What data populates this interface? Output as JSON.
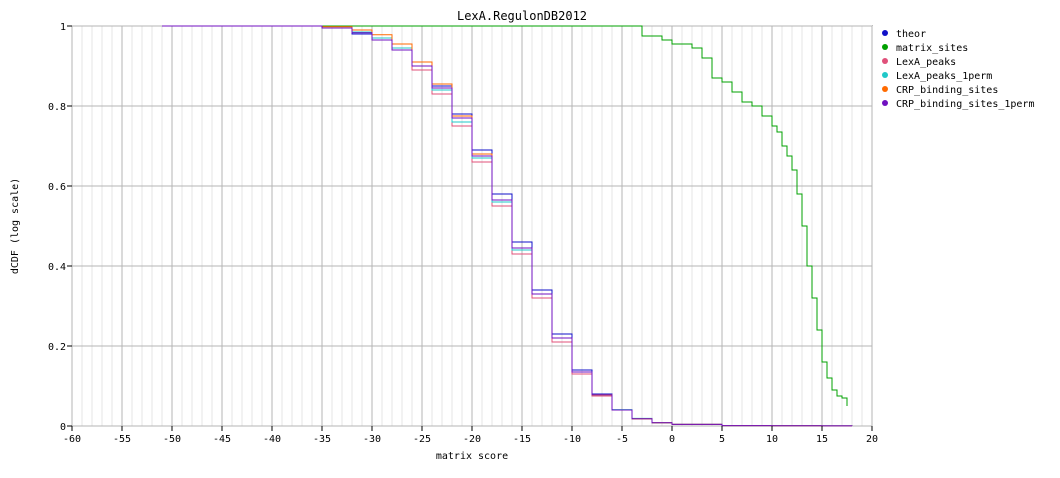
{
  "chart_data": {
    "type": "line",
    "title": "LexA.RegulonDB2012",
    "xlabel": "matrix score",
    "ylabel": "dCDF (log scale)",
    "xlim": [
      -60,
      20
    ],
    "ylim": [
      0,
      1
    ],
    "x_ticks": [
      "-60",
      "-55",
      "-50",
      "-45",
      "-40",
      "-35",
      "-30",
      "-25",
      "-20",
      "-15",
      "-10",
      "-5",
      "0",
      "5",
      "10",
      "15",
      "20"
    ],
    "y_ticks": [
      "0",
      "0.2",
      "0.4",
      "0.6",
      "0.8",
      "1"
    ],
    "grid": true,
    "legend_position": "right",
    "series": [
      {
        "name": "theor",
        "color": "#1010c8",
        "x": [
          -51,
          -40,
          -35,
          -32,
          -30,
          -28,
          -26,
          -24,
          -22,
          -20,
          -18,
          -16,
          -14,
          -12,
          -10,
          -8,
          -6,
          -4,
          -2,
          0,
          5,
          10,
          15,
          18
        ],
        "y": [
          1.0,
          1.0,
          0.995,
          0.98,
          0.965,
          0.94,
          0.9,
          0.85,
          0.78,
          0.69,
          0.58,
          0.46,
          0.34,
          0.23,
          0.14,
          0.08,
          0.04,
          0.018,
          0.008,
          0.004,
          0.001,
          0.0005,
          0.0002,
          0.0001
        ]
      },
      {
        "name": "matrix_sites",
        "color": "#00a000",
        "x": [
          -51,
          -3.5,
          -3,
          -1,
          0,
          2,
          3,
          4,
          5,
          6,
          7,
          8,
          9,
          10,
          10.5,
          11,
          11.5,
          12,
          12.5,
          13,
          13.5,
          14,
          14.5,
          15,
          15.5,
          16,
          16.5,
          17,
          17.5
        ],
        "y": [
          1.0,
          1.0,
          0.975,
          0.965,
          0.955,
          0.945,
          0.92,
          0.87,
          0.86,
          0.835,
          0.81,
          0.8,
          0.775,
          0.75,
          0.735,
          0.7,
          0.675,
          0.64,
          0.58,
          0.5,
          0.4,
          0.32,
          0.24,
          0.16,
          0.12,
          0.09,
          0.075,
          0.07,
          0.05
        ]
      },
      {
        "name": "LexA_peaks",
        "color": "#e0507a",
        "x": [
          -51,
          -40,
          -35,
          -32,
          -30,
          -28,
          -26,
          -24,
          -22,
          -20,
          -18,
          -16,
          -14,
          -12,
          -10,
          -8,
          -6,
          -4,
          -2,
          0,
          5,
          10,
          15,
          18
        ],
        "y": [
          1.0,
          1.0,
          0.995,
          0.985,
          0.97,
          0.945,
          0.89,
          0.83,
          0.75,
          0.66,
          0.55,
          0.43,
          0.32,
          0.21,
          0.13,
          0.075,
          0.04,
          0.018,
          0.008,
          0.004,
          0.001,
          0.0005,
          0.0002,
          0.0001
        ]
      },
      {
        "name": "LexA_peaks_1perm",
        "color": "#20c8c8",
        "x": [
          -51,
          -40,
          -35,
          -32,
          -30,
          -28,
          -26,
          -24,
          -22,
          -20,
          -18,
          -16,
          -14,
          -12,
          -10,
          -8,
          -6,
          -4,
          -2,
          0,
          5,
          10,
          15,
          18
        ],
        "y": [
          1.0,
          1.0,
          0.995,
          0.985,
          0.97,
          0.945,
          0.9,
          0.84,
          0.76,
          0.67,
          0.56,
          0.44,
          0.33,
          0.22,
          0.135,
          0.078,
          0.041,
          0.019,
          0.008,
          0.004,
          0.001,
          0.0005,
          0.0002,
          0.0001
        ]
      },
      {
        "name": "CRP_binding_sites",
        "color": "#ff6a00",
        "x": [
          -51,
          -40,
          -35,
          -32,
          -30,
          -28,
          -26,
          -24,
          -22,
          -20,
          -18,
          -16,
          -14,
          -12,
          -10,
          -8,
          -6,
          -4,
          -2,
          0,
          5,
          10,
          15,
          18
        ],
        "y": [
          1.0,
          1.0,
          0.998,
          0.99,
          0.978,
          0.955,
          0.91,
          0.855,
          0.775,
          0.68,
          0.565,
          0.445,
          0.33,
          0.22,
          0.135,
          0.078,
          0.04,
          0.018,
          0.008,
          0.004,
          0.001,
          0.0005,
          0.0002,
          0.0001
        ]
      },
      {
        "name": "CRP_binding_sites_1perm",
        "color": "#7010c0",
        "x": [
          -51,
          -40,
          -35,
          -32,
          -30,
          -28,
          -26,
          -24,
          -22,
          -20,
          -18,
          -16,
          -14,
          -12,
          -10,
          -8,
          -6,
          -4,
          -2,
          0,
          5,
          10,
          15,
          18
        ],
        "y": [
          1.0,
          1.0,
          0.995,
          0.983,
          0.965,
          0.94,
          0.9,
          0.845,
          0.77,
          0.675,
          0.565,
          0.445,
          0.33,
          0.22,
          0.135,
          0.078,
          0.04,
          0.018,
          0.008,
          0.004,
          0.001,
          0.0005,
          0.0002,
          0.0001
        ]
      }
    ]
  }
}
